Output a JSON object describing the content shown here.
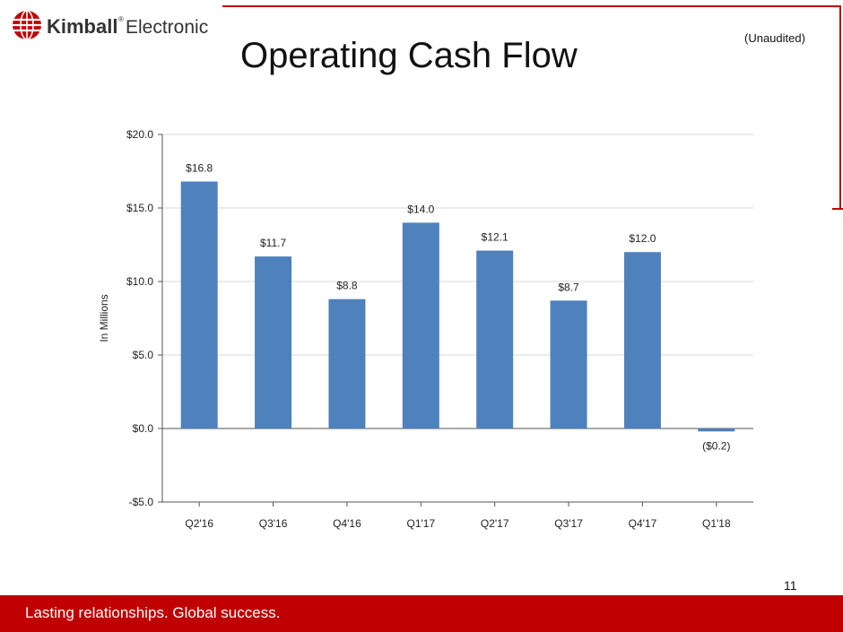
{
  "brand": {
    "name_bold": "Kimball",
    "name_light": "Electronics",
    "trademark": "®",
    "accent_color": "#c00000"
  },
  "slide": {
    "title": "Operating Cash Flow",
    "note": "(Unaudited)",
    "page_number": "11",
    "tagline": "Lasting relationships. Global success."
  },
  "chart_data": {
    "type": "bar",
    "categories": [
      "Q2'16",
      "Q3'16",
      "Q4'16",
      "Q1'17",
      "Q2'17",
      "Q3'17",
      "Q4'17",
      "Q1'18"
    ],
    "values": [
      16.8,
      11.7,
      8.8,
      14.0,
      12.1,
      8.7,
      12.0,
      -0.2
    ],
    "data_labels": [
      "$16.8",
      "$11.7",
      "$8.8",
      "$14.0",
      "$12.1",
      "$8.7",
      "$12.0",
      "($0.2)"
    ],
    "ylabel": "In Millions",
    "xlabel": "",
    "ylim": [
      -5,
      20
    ],
    "yticks": [
      -5,
      0,
      5,
      10,
      15,
      20
    ],
    "ytick_labels": [
      "-$5.0",
      "$0.0",
      "$5.0",
      "$10.0",
      "$15.0",
      "$20.0"
    ],
    "grid": true,
    "bar_color": "#4f81bd"
  }
}
